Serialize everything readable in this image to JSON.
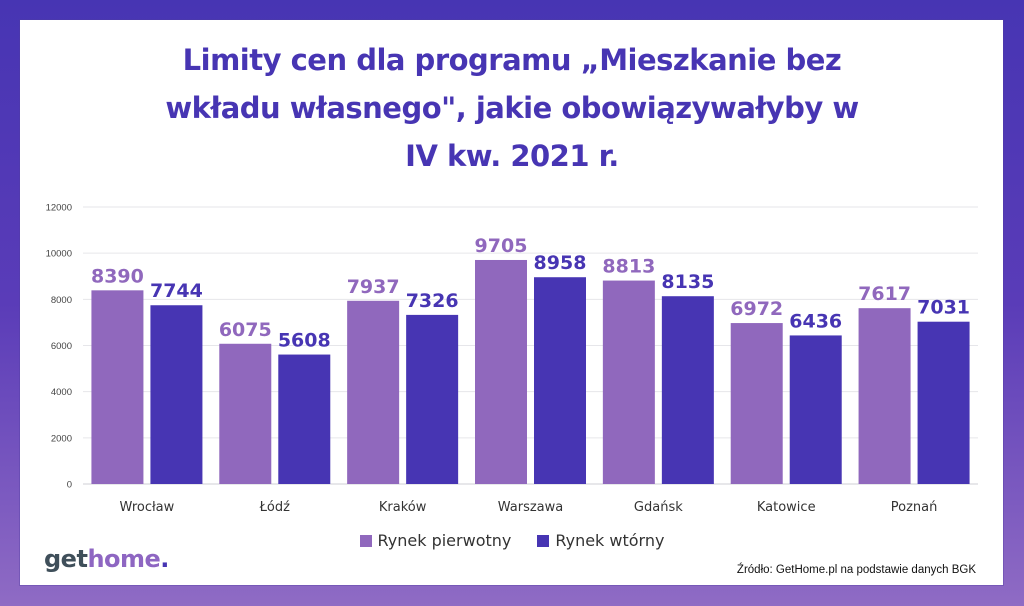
{
  "chart_data": {
    "type": "bar",
    "title": "Limity cen dla programu „Mieszkanie bez wkładu własnego\", jakie obowiązywałyby w IV kw. 2021 r.",
    "title_lines": [
      "Limity cen dla programu „Mieszkanie bez",
      "wkładu własnego\", jakie obowiązywałyby w",
      "IV kw. 2021 r."
    ],
    "categories": [
      "Wrocław",
      "Łódź",
      "Kraków",
      "Warszawa",
      "Gdańsk",
      "Katowice",
      "Poznań"
    ],
    "series": [
      {
        "name": "Rynek pierwotny",
        "color": "#9068bd",
        "values": [
          8390,
          6075,
          7937,
          9705,
          8813,
          6972,
          7617
        ]
      },
      {
        "name": "Rynek wtórny",
        "color": "#4735b3",
        "values": [
          7744,
          5608,
          7326,
          8958,
          8135,
          6436,
          7031
        ]
      }
    ],
    "xlabel": "",
    "ylabel": "",
    "ylim": [
      0,
      12000
    ],
    "yticks": [
      0,
      2000,
      4000,
      6000,
      8000,
      10000,
      12000
    ],
    "grid": true,
    "legend_position": "bottom-center",
    "data_labels": true
  },
  "branding": {
    "logo_parts": [
      "get",
      "home",
      "."
    ]
  },
  "source_note": "Źródło: GetHome.pl na podstawie danych BGK"
}
